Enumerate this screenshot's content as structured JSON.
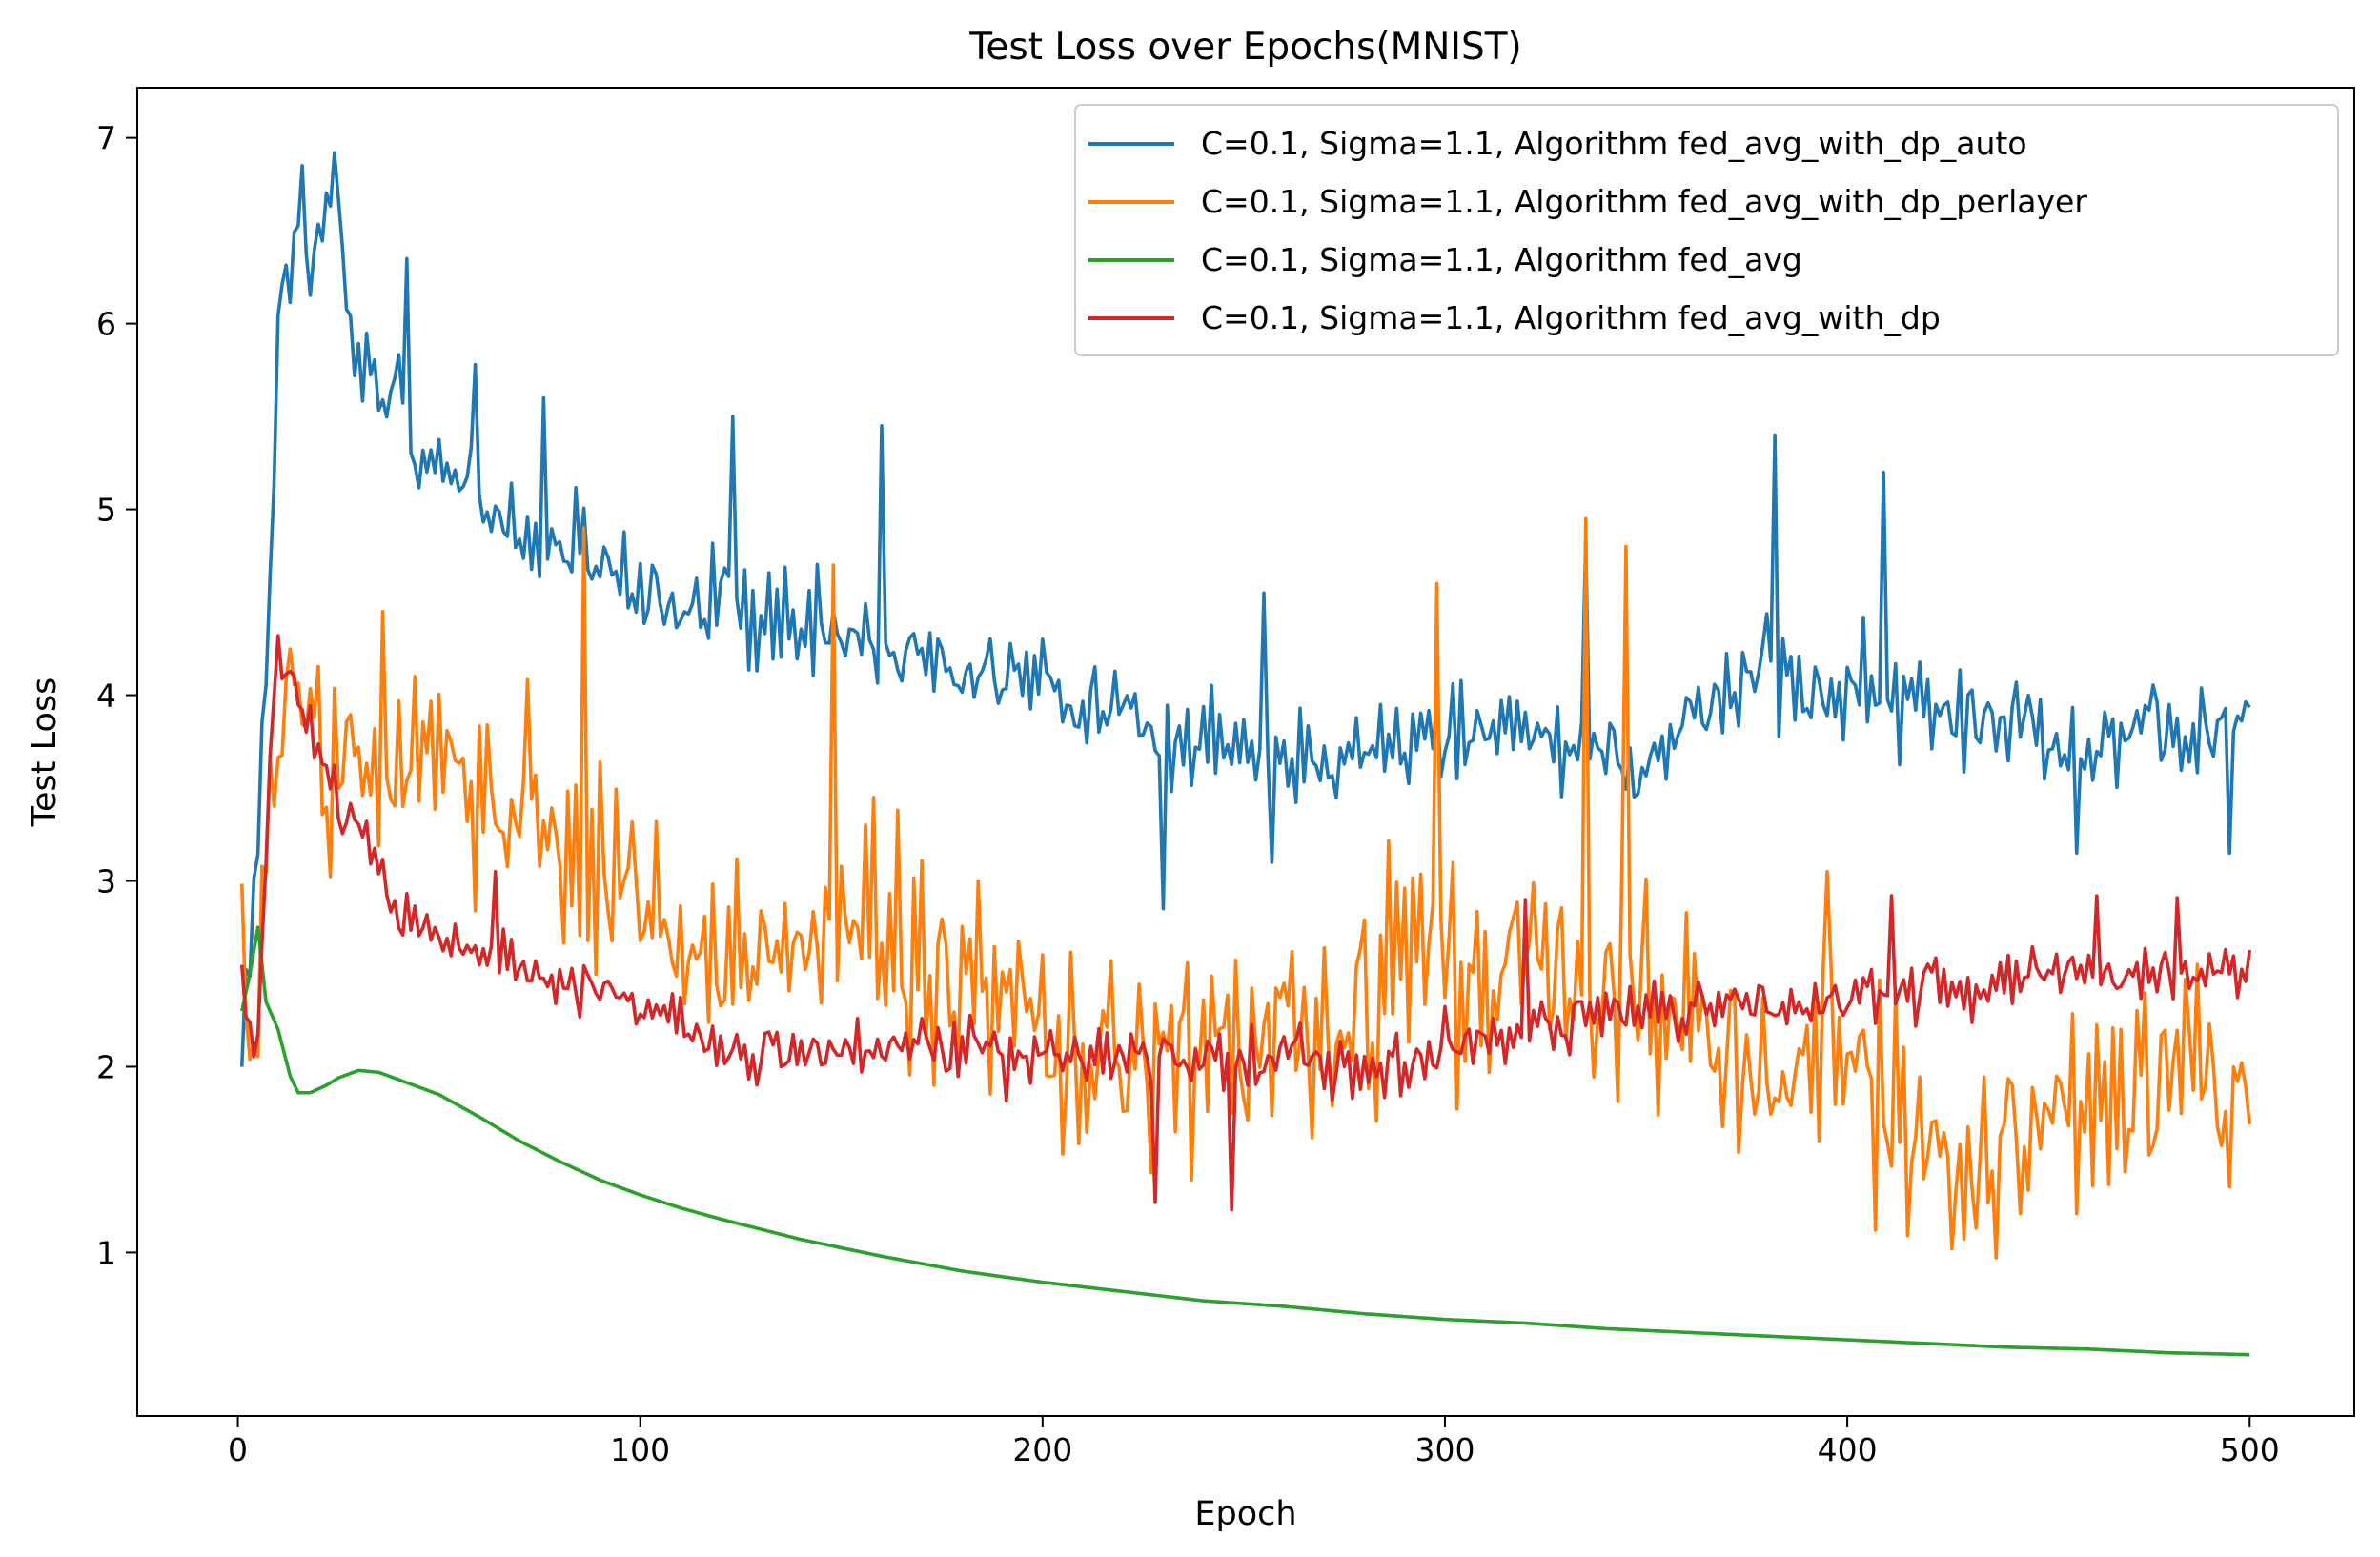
{
  "chart_data": {
    "type": "line",
    "title": "Test Loss over Epochs(MNIST)",
    "xlabel": "Epoch",
    "ylabel": "Test Loss",
    "xlim": [
      -25,
      526
    ],
    "ylim": [
      0.12,
      7.27
    ],
    "xticks": [
      0,
      100,
      200,
      300,
      400,
      500
    ],
    "yticks": [
      1,
      2,
      3,
      4,
      5,
      6,
      7
    ],
    "grid": false,
    "legend_position": "top-right",
    "series": [
      {
        "name": "C=0.1, Sigma=1.1, Algorithm fed_avg_with_dp_auto",
        "color": "#1f77b4",
        "keypoints": [
          [
            1,
            2.3
          ],
          [
            3,
            2.6
          ],
          [
            5,
            3.2
          ],
          [
            7,
            4.1
          ],
          [
            9,
            5.3
          ],
          [
            10,
            6.1
          ],
          [
            13,
            6.2
          ],
          [
            16,
            6.8
          ],
          [
            18,
            6.2
          ],
          [
            22,
            6.5
          ],
          [
            24,
            6.9
          ],
          [
            28,
            5.9
          ],
          [
            32,
            5.8
          ],
          [
            36,
            5.5
          ],
          [
            40,
            5.8
          ],
          [
            44,
            5.3
          ],
          [
            50,
            5.3
          ],
          [
            60,
            5.0
          ],
          [
            70,
            4.9
          ],
          [
            80,
            4.8
          ],
          [
            90,
            4.7
          ],
          [
            100,
            4.55
          ],
          [
            110,
            4.4
          ],
          [
            120,
            4.55
          ],
          [
            130,
            4.4
          ],
          [
            140,
            4.3
          ],
          [
            150,
            4.3
          ],
          [
            160,
            4.3
          ],
          [
            170,
            4.2
          ],
          [
            180,
            4.15
          ],
          [
            190,
            4.1
          ],
          [
            200,
            4.05
          ],
          [
            210,
            4.0
          ],
          [
            220,
            3.95
          ],
          [
            230,
            3.7
          ],
          [
            240,
            3.85
          ],
          [
            250,
            3.75
          ],
          [
            260,
            3.65
          ],
          [
            270,
            3.7
          ],
          [
            280,
            3.75
          ],
          [
            290,
            3.75
          ],
          [
            300,
            3.75
          ],
          [
            310,
            3.85
          ],
          [
            320,
            3.8
          ],
          [
            330,
            3.8
          ],
          [
            340,
            3.75
          ],
          [
            350,
            3.6
          ],
          [
            360,
            3.85
          ],
          [
            370,
            4.0
          ],
          [
            380,
            4.15
          ],
          [
            390,
            4.05
          ],
          [
            400,
            4.0
          ],
          [
            410,
            3.95
          ],
          [
            420,
            3.95
          ],
          [
            430,
            3.9
          ],
          [
            440,
            3.9
          ],
          [
            450,
            3.85
          ],
          [
            460,
            3.7
          ],
          [
            470,
            3.85
          ],
          [
            480,
            3.75
          ],
          [
            490,
            3.75
          ],
          [
            500,
            3.9
          ]
        ],
        "noise": 0.36,
        "spikes": [
          [
            24,
            6.92
          ],
          [
            16,
            6.85
          ],
          [
            42,
            6.35
          ],
          [
            59,
            5.78
          ],
          [
            76,
            5.6
          ],
          [
            123,
            5.5
          ],
          [
            160,
            5.45
          ],
          [
            382,
            5.4
          ],
          [
            409,
            5.2
          ],
          [
            230,
            2.85
          ],
          [
            257,
            3.1
          ],
          [
            255,
            4.55
          ],
          [
            335,
            4.85
          ],
          [
            457,
            3.15
          ],
          [
            495,
            3.15
          ]
        ]
      },
      {
        "name": "C=0.1, Sigma=1.1, Algorithm fed_avg_with_dp_perlayer",
        "color": "#ff7f0e",
        "keypoints": [
          [
            1,
            3.15
          ],
          [
            2,
            2.3
          ],
          [
            4,
            1.85
          ],
          [
            6,
            2.7
          ],
          [
            8,
            3.4
          ],
          [
            12,
            3.9
          ],
          [
            16,
            4.1
          ],
          [
            20,
            3.6
          ],
          [
            30,
            3.6
          ],
          [
            40,
            3.7
          ],
          [
            50,
            3.65
          ],
          [
            60,
            3.45
          ],
          [
            70,
            3.5
          ],
          [
            80,
            3.3
          ],
          [
            90,
            3.1
          ],
          [
            100,
            2.9
          ],
          [
            110,
            2.75
          ],
          [
            120,
            2.65
          ],
          [
            130,
            2.55
          ],
          [
            140,
            2.75
          ],
          [
            150,
            2.9
          ],
          [
            160,
            2.6
          ],
          [
            170,
            2.5
          ],
          [
            180,
            2.45
          ],
          [
            190,
            2.35
          ],
          [
            200,
            2.15
          ],
          [
            210,
            2.05
          ],
          [
            220,
            2.15
          ],
          [
            230,
            2.1
          ],
          [
            240,
            2.05
          ],
          [
            250,
            2.05
          ],
          [
            260,
            2.1
          ],
          [
            270,
            2.15
          ],
          [
            280,
            2.3
          ],
          [
            290,
            2.6
          ],
          [
            300,
            2.45
          ],
          [
            310,
            2.5
          ],
          [
            320,
            2.55
          ],
          [
            330,
            2.4
          ],
          [
            340,
            2.5
          ],
          [
            350,
            2.3
          ],
          [
            360,
            2.2
          ],
          [
            370,
            2.1
          ],
          [
            380,
            2.0
          ],
          [
            390,
            2.1
          ],
          [
            400,
            2.15
          ],
          [
            410,
            1.9
          ],
          [
            420,
            1.55
          ],
          [
            430,
            1.5
          ],
          [
            440,
            1.5
          ],
          [
            450,
            1.7
          ],
          [
            460,
            1.75
          ],
          [
            470,
            1.75
          ],
          [
            480,
            1.9
          ],
          [
            490,
            1.8
          ],
          [
            500,
            1.75
          ]
        ],
        "noise": 0.75,
        "spikes": [
          [
            86,
            4.9
          ],
          [
            148,
            4.7
          ],
          [
            335,
            4.95
          ],
          [
            298,
            4.6
          ],
          [
            345,
            4.8
          ],
          [
            36,
            4.45
          ],
          [
            395,
            3.05
          ],
          [
            487,
            2.55
          ],
          [
            407,
            1.12
          ]
        ]
      },
      {
        "name": "C=0.1, Sigma=1.1, Algorithm fed_avg",
        "color": "#2ca02c",
        "keypoints": [
          [
            1,
            2.3
          ],
          [
            3,
            2.5
          ],
          [
            5,
            2.75
          ],
          [
            7,
            2.35
          ],
          [
            10,
            2.2
          ],
          [
            13,
            1.95
          ],
          [
            15,
            1.86
          ],
          [
            18,
            1.86
          ],
          [
            22,
            1.9
          ],
          [
            25,
            1.94
          ],
          [
            30,
            1.98
          ],
          [
            35,
            1.97
          ],
          [
            40,
            1.93
          ],
          [
            50,
            1.85
          ],
          [
            60,
            1.73
          ],
          [
            70,
            1.6
          ],
          [
            80,
            1.49
          ],
          [
            90,
            1.39
          ],
          [
            100,
            1.31
          ],
          [
            110,
            1.24
          ],
          [
            120,
            1.18
          ],
          [
            140,
            1.07
          ],
          [
            160,
            0.98
          ],
          [
            180,
            0.9
          ],
          [
            200,
            0.84
          ],
          [
            220,
            0.79
          ],
          [
            240,
            0.74
          ],
          [
            260,
            0.71
          ],
          [
            280,
            0.67
          ],
          [
            300,
            0.64
          ],
          [
            320,
            0.62
          ],
          [
            340,
            0.59
          ],
          [
            360,
            0.57
          ],
          [
            380,
            0.55
          ],
          [
            400,
            0.53
          ],
          [
            420,
            0.51
          ],
          [
            440,
            0.49
          ],
          [
            460,
            0.48
          ],
          [
            480,
            0.46
          ],
          [
            500,
            0.45
          ]
        ],
        "noise": 0,
        "spikes": []
      },
      {
        "name": "C=0.1, Sigma=1.1, Algorithm fed_avg_with_dp",
        "color": "#d62728",
        "keypoints": [
          [
            1,
            2.55
          ],
          [
            3,
            2.2
          ],
          [
            4,
            1.95
          ],
          [
            6,
            2.5
          ],
          [
            8,
            3.6
          ],
          [
            10,
            4.2
          ],
          [
            13,
            4.2
          ],
          [
            16,
            3.9
          ],
          [
            20,
            3.7
          ],
          [
            25,
            3.45
          ],
          [
            30,
            3.25
          ],
          [
            35,
            3.1
          ],
          [
            40,
            2.85
          ],
          [
            50,
            2.7
          ],
          [
            60,
            2.6
          ],
          [
            70,
            2.55
          ],
          [
            80,
            2.45
          ],
          [
            90,
            2.4
          ],
          [
            100,
            2.3
          ],
          [
            110,
            2.2
          ],
          [
            120,
            2.15
          ],
          [
            130,
            2.1
          ],
          [
            140,
            2.1
          ],
          [
            150,
            2.1
          ],
          [
            160,
            2.1
          ],
          [
            170,
            2.15
          ],
          [
            180,
            2.1
          ],
          [
            190,
            2.05
          ],
          [
            200,
            2.05
          ],
          [
            210,
            2.05
          ],
          [
            220,
            2.1
          ],
          [
            230,
            2.05
          ],
          [
            240,
            2.0
          ],
          [
            250,
            2.0
          ],
          [
            260,
            2.05
          ],
          [
            270,
            2.0
          ],
          [
            280,
            2.0
          ],
          [
            290,
            2.0
          ],
          [
            300,
            2.1
          ],
          [
            310,
            2.15
          ],
          [
            320,
            2.2
          ],
          [
            330,
            2.25
          ],
          [
            340,
            2.3
          ],
          [
            350,
            2.3
          ],
          [
            360,
            2.3
          ],
          [
            370,
            2.35
          ],
          [
            380,
            2.35
          ],
          [
            390,
            2.35
          ],
          [
            400,
            2.35
          ],
          [
            410,
            2.4
          ],
          [
            420,
            2.45
          ],
          [
            430,
            2.45
          ],
          [
            440,
            2.5
          ],
          [
            450,
            2.5
          ],
          [
            460,
            2.55
          ],
          [
            470,
            2.5
          ],
          [
            480,
            2.5
          ],
          [
            490,
            2.5
          ],
          [
            500,
            2.5
          ]
        ],
        "noise": 0.22,
        "spikes": [
          [
            10,
            4.32
          ],
          [
            64,
            3.05
          ],
          [
            228,
            1.27
          ],
          [
            247,
            1.23
          ],
          [
            411,
            2.92
          ],
          [
            462,
            2.92
          ],
          [
            482,
            2.91
          ],
          [
            320,
            2.9
          ]
        ]
      }
    ]
  }
}
